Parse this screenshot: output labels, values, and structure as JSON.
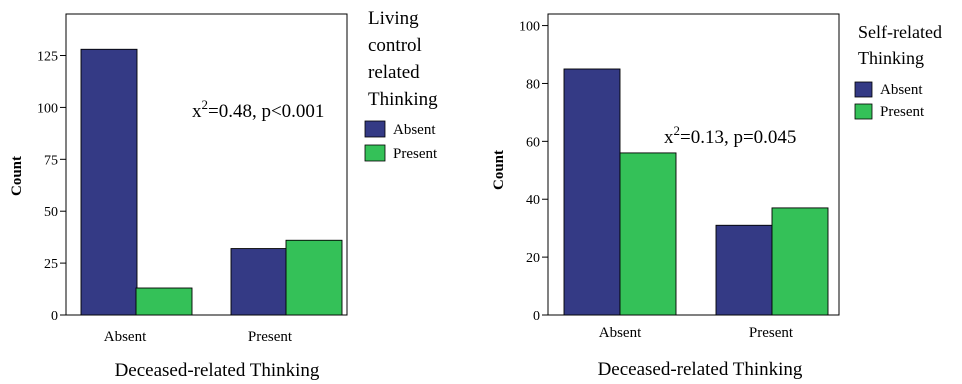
{
  "colors": {
    "absent": "#343a85",
    "present": "#34c158",
    "outline": "#000000"
  },
  "chart_data": [
    {
      "type": "bar",
      "categories": [
        "Absent",
        "Present"
      ],
      "series": [
        {
          "name": "Absent",
          "values": [
            128,
            32
          ]
        },
        {
          "name": "Present",
          "values": [
            13,
            36
          ]
        }
      ],
      "ylim": [
        0,
        145
      ],
      "yticks": [
        0,
        25,
        50,
        75,
        100,
        125
      ],
      "xlabel": "Deceased-related Thinking",
      "ylabel": "Count",
      "legend_title": [
        "Living",
        "control",
        "related",
        "Thinking"
      ],
      "annotation": {
        "prefix": "x",
        "sup": "2",
        "rest": "=0.48, p<0.001"
      },
      "legend_position": "right"
    },
    {
      "type": "bar",
      "categories": [
        "Absent",
        "Present"
      ],
      "series": [
        {
          "name": "Absent",
          "values": [
            85,
            31
          ]
        },
        {
          "name": "Present",
          "values": [
            56,
            37
          ]
        }
      ],
      "ylim": [
        0,
        104
      ],
      "yticks": [
        0,
        20,
        40,
        60,
        80,
        100
      ],
      "xlabel": "Deceased-related Thinking",
      "ylabel": "Count",
      "legend_title": [
        "Self-related",
        "Thinking"
      ],
      "annotation": {
        "prefix": "x",
        "sup": "2",
        "rest": "=0.13, p=0.045"
      },
      "legend_position": "right"
    }
  ]
}
